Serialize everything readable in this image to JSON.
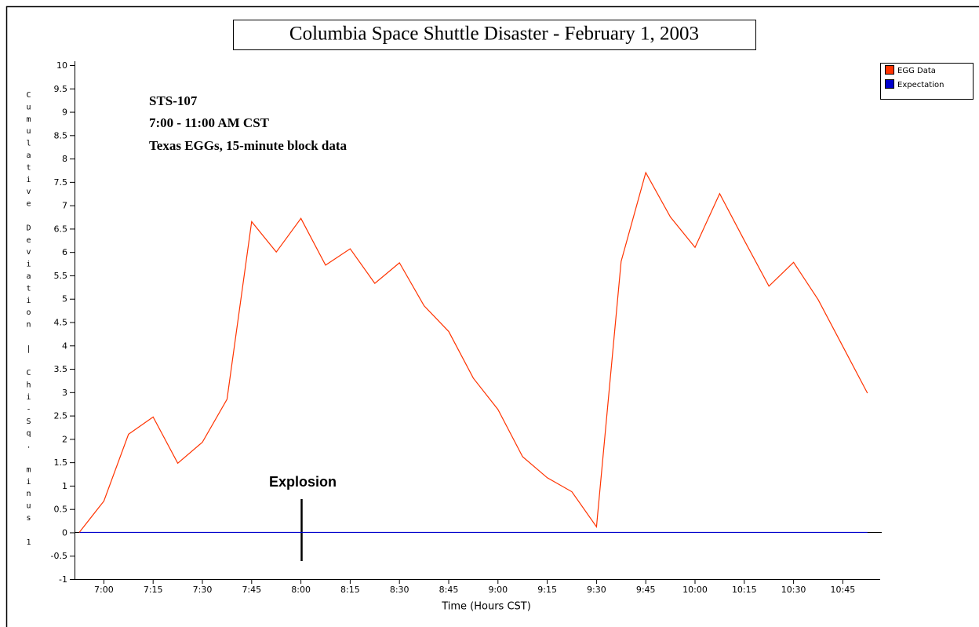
{
  "chart_data": {
    "type": "line",
    "title": "Columbia Space Shuttle Disaster - February 1, 2003",
    "annotations": [
      "STS-107",
      "7:00 - 11:00 AM CST",
      "Texas EGGs, 15-minute block data"
    ],
    "event_label": "Explosion",
    "x_label": "Time (Hours CST)",
    "y_label": "Cumulative Deviation | Chi-Sq. minus 1",
    "categories": [
      null,
      "7:00",
      null,
      "7:15",
      null,
      "7:30",
      null,
      "7:45",
      null,
      "8:00",
      null,
      "8:15",
      null,
      "8:30",
      null,
      "8:45",
      null,
      "9:00",
      null,
      "9:15",
      null,
      "9:30",
      null,
      "9:45",
      null,
      "10:00",
      null,
      "10:15",
      null,
      "10:30",
      null,
      "10:45",
      null
    ],
    "series": [
      {
        "name": "EGG Data",
        "color": "#ff3300",
        "values": [
          0,
          0.67,
          2.1,
          2.47,
          1.48,
          1.93,
          2.85,
          6.65,
          6.0,
          6.72,
          5.72,
          6.07,
          5.33,
          5.77,
          4.85,
          4.3,
          3.3,
          2.63,
          1.62,
          1.17,
          0.87,
          0.12,
          5.8,
          7.7,
          6.75,
          6.1,
          7.25,
          6.25,
          5.27,
          5.78,
          4.98,
          3.98,
          2.98
        ]
      },
      {
        "name": "Expectation",
        "color": "#0000cc",
        "values": [
          0,
          0,
          0,
          0,
          0,
          0,
          0,
          0,
          0,
          0,
          0,
          0,
          0,
          0,
          0,
          0,
          0,
          0,
          0,
          0,
          0,
          0,
          0,
          0,
          0,
          0,
          0,
          0,
          0,
          0,
          0,
          0,
          0
        ]
      }
    ],
    "ylim": [
      -1,
      10
    ],
    "yticks": [
      -1,
      -0.5,
      0,
      0.5,
      1,
      1.5,
      2,
      2.5,
      3,
      3.5,
      4,
      4.5,
      5,
      5.5,
      6,
      6.5,
      7,
      7.5,
      8,
      8.5,
      9,
      9.5,
      10
    ]
  }
}
